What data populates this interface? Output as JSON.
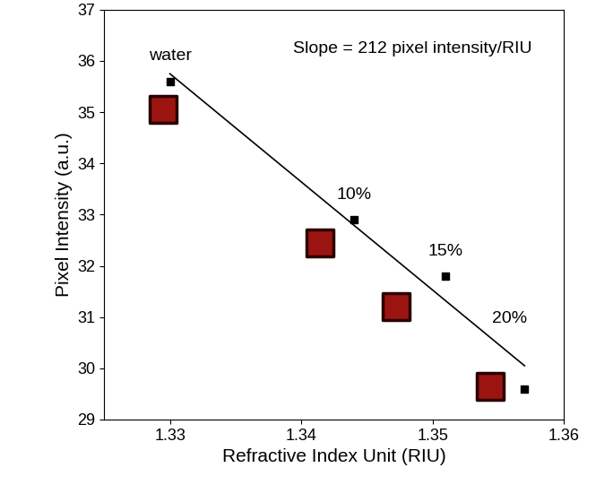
{
  "chart_data": {
    "type": "scatter",
    "x_label": "Refractive Index Unit (RIU)",
    "y_label": "Pixel Intensity (a.u.)",
    "annotation": "Slope = 212 pixel intensity/RIU",
    "x": [
      1.33,
      1.344,
      1.351,
      1.357
    ],
    "values": [
      35.6,
      32.9,
      31.8,
      29.6
    ],
    "point_labels": [
      "water",
      "10%",
      "15%",
      "20%"
    ],
    "color": "#000000",
    "marker": "square",
    "fit": {
      "x": [
        1.33,
        1.357
      ],
      "values": [
        35.75,
        30.05
      ],
      "color": "#000000",
      "line_style": "solid"
    },
    "spots": {
      "x": [
        1.3295,
        1.3414,
        1.3472,
        1.3544
      ],
      "values": [
        35.05,
        32.45,
        31.2,
        29.65
      ],
      "color": "#9c1410",
      "marker": "square"
    },
    "xlim": [
      1.325,
      1.36
    ],
    "xticks": [
      1.33,
      1.34,
      1.35,
      1.36
    ],
    "ylim": [
      29,
      37
    ],
    "yticks": [
      29,
      30,
      31,
      32,
      33,
      34,
      35,
      36,
      37
    ],
    "grid": false
  }
}
